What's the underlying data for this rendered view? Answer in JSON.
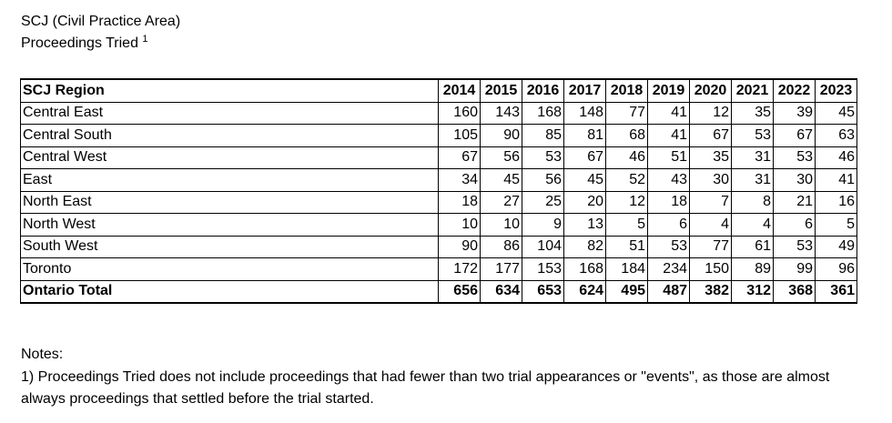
{
  "document": {
    "title_line1": "SCJ (Civil Practice Area)",
    "title_line2": "Proceedings Tried",
    "title_footnote_mark": "1"
  },
  "table": {
    "region_header": "SCJ Region",
    "years": [
      "2014",
      "2015",
      "2016",
      "2017",
      "2018",
      "2019",
      "2020",
      "2021",
      "2022",
      "2023"
    ],
    "rows": [
      {
        "region": "Central East",
        "values": [
          "160",
          "143",
          "168",
          "148",
          "77",
          "41",
          "12",
          "35",
          "39",
          "45"
        ]
      },
      {
        "region": "Central South",
        "values": [
          "105",
          "90",
          "85",
          "81",
          "68",
          "41",
          "67",
          "53",
          "67",
          "63"
        ]
      },
      {
        "region": "Central West",
        "values": [
          "67",
          "56",
          "53",
          "67",
          "46",
          "51",
          "35",
          "31",
          "53",
          "46"
        ]
      },
      {
        "region": "East",
        "values": [
          "34",
          "45",
          "56",
          "45",
          "52",
          "43",
          "30",
          "31",
          "30",
          "41"
        ]
      },
      {
        "region": "North East",
        "values": [
          "18",
          "27",
          "25",
          "20",
          "12",
          "18",
          "7",
          "8",
          "21",
          "16"
        ]
      },
      {
        "region": "North West",
        "values": [
          "10",
          "10",
          "9",
          "13",
          "5",
          "6",
          "4",
          "4",
          "6",
          "5"
        ]
      },
      {
        "region": "South West",
        "values": [
          "90",
          "86",
          "104",
          "82",
          "51",
          "53",
          "77",
          "61",
          "53",
          "49"
        ]
      },
      {
        "region": "Toronto",
        "values": [
          "172",
          "177",
          "153",
          "168",
          "184",
          "234",
          "150",
          "89",
          "99",
          "96"
        ]
      }
    ],
    "total": {
      "region": "Ontario Total",
      "values": [
        "656",
        "634",
        "653",
        "624",
        "495",
        "487",
        "382",
        "312",
        "368",
        "361"
      ]
    }
  },
  "notes": {
    "heading": "Notes:",
    "note1": "1) Proceedings Tried does not include proceedings that had fewer than two trial appearances or \"events\", as those are almost always proceedings that settled before the trial started."
  }
}
